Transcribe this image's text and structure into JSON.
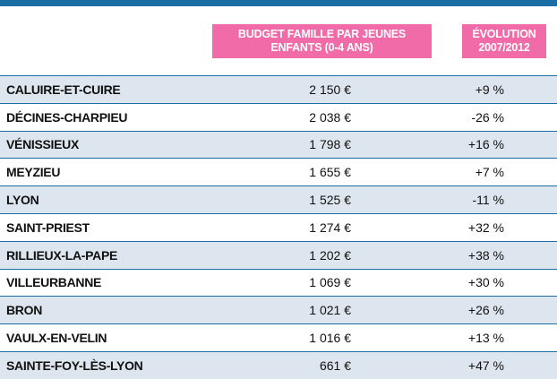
{
  "colors": {
    "accent_blue": "#1a6ea6",
    "header_pink": "#f06ba8",
    "row_shade": "#dde6ee"
  },
  "headers": {
    "budget_line1": "BUDGET FAMILLE PAR JEUNES",
    "budget_line2": "ENFANTS (0-4 ANS)",
    "evolution_line1": "ÉVOLUTION",
    "evolution_line2": "2007/2012"
  },
  "rows": [
    {
      "city": "CALUIRE-ET-CUIRE",
      "budget": "2 150 €",
      "evolution": "+9 %"
    },
    {
      "city": "DÉCINES-CHARPIEU",
      "budget": "2 038 €",
      "evolution": "-26 %"
    },
    {
      "city": "VÉNISSIEUX",
      "budget": "1 798 €",
      "evolution": "+16 %"
    },
    {
      "city": "MEYZIEU",
      "budget": "1 655 €",
      "evolution": "+7 %"
    },
    {
      "city": "LYON",
      "budget": "1 525 €",
      "evolution": "-11 %"
    },
    {
      "city": "SAINT-PRIEST",
      "budget": "1 274 €",
      "evolution": "+32 %"
    },
    {
      "city": "RILLIEUX-LA-PAPE",
      "budget": "1 202 €",
      "evolution": "+38 %"
    },
    {
      "city": "VILLEURBANNE",
      "budget": "1 069 €",
      "evolution": "+30 %"
    },
    {
      "city": "BRON",
      "budget": "1 021 €",
      "evolution": "+26 %"
    },
    {
      "city": "VAULX-EN-VELIN",
      "budget": "1 016 €",
      "evolution": "+13 %"
    },
    {
      "city": "SAINTE-FOY-LÈS-LYON",
      "budget": "661 €",
      "evolution": "+47 %"
    }
  ]
}
